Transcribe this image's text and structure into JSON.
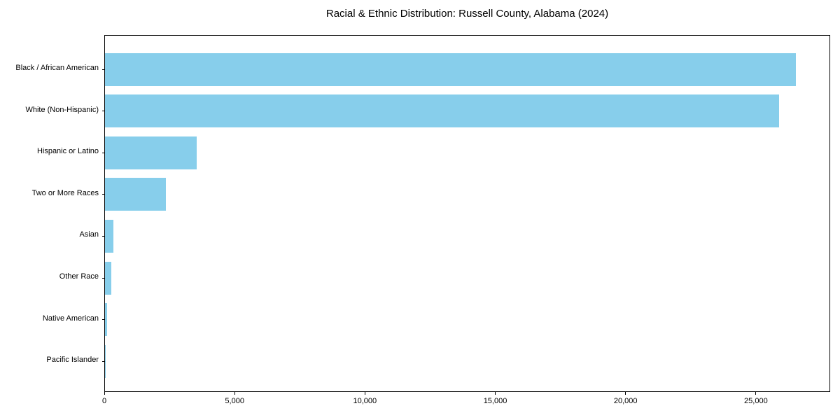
{
  "chart_data": {
    "type": "bar",
    "orientation": "horizontal",
    "title": "Racial & Ethnic Distribution: Russell County, Alabama (2024)",
    "categories": [
      "Black / African American",
      "White (Non-Hispanic)",
      "Hispanic or Latino",
      "Two or More Races",
      "Asian",
      "Other Race",
      "Native American",
      "Pacific Islander"
    ],
    "values": [
      26500,
      25860,
      3520,
      2330,
      320,
      230,
      85,
      25
    ],
    "xlabel": "",
    "ylabel": "",
    "xlim": [
      0,
      27850
    ],
    "x_ticks": [
      0,
      5000,
      10000,
      15000,
      20000,
      25000
    ],
    "x_tick_labels": [
      "0",
      "5,000",
      "10,000",
      "15,000",
      "20,000",
      "25,000"
    ],
    "bar_color": "#87CEEB",
    "axis_color": "#000000",
    "text_color": "#000000",
    "background": "#FFFFFF",
    "grid": false,
    "legend": null
  }
}
